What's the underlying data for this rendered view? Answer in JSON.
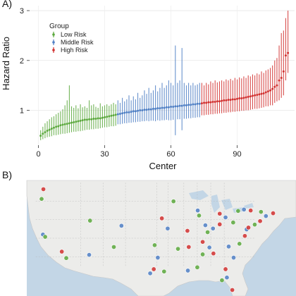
{
  "panels": {
    "a_tag": "A)",
    "b_tag": "B)"
  },
  "chart_data": {
    "type": "scatter",
    "subtype": "forest-plot",
    "title": "",
    "xlabel": "Center",
    "ylabel": "Hazard Ratio",
    "xlim": [
      -4,
      116
    ],
    "ylim": [
      0.3,
      3.1
    ],
    "xticks": [
      0,
      30,
      60,
      90
    ],
    "yticks": [
      1,
      2,
      3
    ],
    "grid": true,
    "legend": {
      "title": "Group",
      "placement": "top-left",
      "entries": [
        {
          "name": "Low Risk",
          "color": "#5aa83c"
        },
        {
          "name": "Middle Risk",
          "color": "#4f7fc4"
        },
        {
          "name": "High Risk",
          "color": "#d1302f"
        }
      ]
    },
    "series": [
      {
        "name": "Low Risk",
        "color": "#5aa83c",
        "points": [
          [
            1,
            0.49,
            0.4,
            0.6
          ],
          [
            2,
            0.53,
            0.42,
            0.67
          ],
          [
            3,
            0.56,
            0.44,
            0.74
          ],
          [
            4,
            0.59,
            0.46,
            0.78
          ],
          [
            5,
            0.61,
            0.47,
            0.82
          ],
          [
            6,
            0.63,
            0.48,
            0.86
          ],
          [
            7,
            0.65,
            0.5,
            0.88
          ],
          [
            8,
            0.67,
            0.5,
            0.92
          ],
          [
            9,
            0.68,
            0.51,
            0.95
          ],
          [
            10,
            0.7,
            0.52,
            0.98
          ],
          [
            11,
            0.71,
            0.53,
            1.02
          ],
          [
            12,
            0.72,
            0.53,
            1.1
          ],
          [
            13,
            0.73,
            0.54,
            1.2
          ],
          [
            14,
            0.74,
            0.55,
            1.5
          ],
          [
            15,
            0.75,
            0.56,
            1.08
          ],
          [
            16,
            0.76,
            0.57,
            1.05
          ],
          [
            17,
            0.77,
            0.57,
            1.1
          ],
          [
            18,
            0.78,
            0.58,
            1.04
          ],
          [
            19,
            0.79,
            0.58,
            1.12
          ],
          [
            20,
            0.8,
            0.59,
            1.06
          ],
          [
            21,
            0.81,
            0.6,
            1.08
          ],
          [
            22,
            0.81,
            0.61,
            1.05
          ],
          [
            23,
            0.82,
            0.61,
            1.2
          ],
          [
            24,
            0.82,
            0.62,
            1.1
          ],
          [
            25,
            0.83,
            0.62,
            1.12
          ],
          [
            26,
            0.83,
            0.63,
            1.07
          ],
          [
            27,
            0.84,
            0.63,
            1.05
          ],
          [
            28,
            0.84,
            0.64,
            1.14
          ],
          [
            29,
            0.85,
            0.65,
            1.08
          ],
          [
            30,
            0.86,
            0.66,
            1.1
          ],
          [
            31,
            0.87,
            0.66,
            1.12
          ],
          [
            32,
            0.88,
            0.67,
            1.09
          ],
          [
            33,
            0.89,
            0.68,
            1.12
          ],
          [
            34,
            0.9,
            0.68,
            1.15
          ],
          [
            35,
            0.91,
            0.69,
            1.12
          ]
        ]
      },
      {
        "name": "Middle Risk",
        "color": "#4f7fc4",
        "points": [
          [
            36,
            0.92,
            0.72,
            1.2
          ],
          [
            37,
            0.93,
            0.72,
            1.15
          ],
          [
            38,
            0.94,
            0.73,
            1.25
          ],
          [
            39,
            0.95,
            0.74,
            1.18
          ],
          [
            40,
            0.96,
            0.74,
            1.22
          ],
          [
            41,
            0.96,
            0.75,
            1.3
          ],
          [
            42,
            0.97,
            0.75,
            1.2
          ],
          [
            43,
            0.98,
            0.76,
            1.28
          ],
          [
            44,
            0.98,
            0.76,
            1.22
          ],
          [
            45,
            0.99,
            0.77,
            1.35
          ],
          [
            46,
            1.0,
            0.77,
            1.25
          ],
          [
            47,
            1.0,
            0.78,
            1.3
          ],
          [
            48,
            1.01,
            0.78,
            1.4
          ],
          [
            49,
            1.01,
            0.79,
            1.33
          ],
          [
            50,
            1.02,
            0.78,
            1.45
          ],
          [
            51,
            1.02,
            0.79,
            1.35
          ],
          [
            52,
            1.03,
            0.79,
            1.4
          ],
          [
            53,
            1.03,
            0.78,
            1.5
          ],
          [
            54,
            1.04,
            0.8,
            1.38
          ],
          [
            55,
            1.04,
            0.79,
            1.45
          ],
          [
            56,
            1.05,
            0.8,
            1.55
          ],
          [
            57,
            1.05,
            0.8,
            1.45
          ],
          [
            58,
            1.06,
            0.81,
            1.5
          ],
          [
            59,
            1.06,
            0.8,
            1.6
          ],
          [
            60,
            1.07,
            0.8,
            1.55
          ],
          [
            61,
            1.07,
            0.81,
            1.5
          ],
          [
            62,
            1.08,
            0.5,
            2.3
          ],
          [
            63,
            1.08,
            0.82,
            1.55
          ],
          [
            64,
            1.09,
            0.82,
            1.6
          ],
          [
            65,
            1.09,
            0.6,
            2.25
          ],
          [
            66,
            1.1,
            0.83,
            1.55
          ],
          [
            67,
            1.1,
            0.83,
            1.5
          ],
          [
            68,
            1.11,
            0.84,
            1.55
          ],
          [
            69,
            1.11,
            0.84,
            1.5
          ],
          [
            70,
            1.12,
            0.85,
            1.55
          ],
          [
            71,
            1.12,
            0.85,
            1.5
          ],
          [
            72,
            1.13,
            0.86,
            1.52
          ],
          [
            73,
            1.13,
            0.86,
            1.55
          ]
        ]
      },
      {
        "name": "High Risk",
        "color": "#d1302f",
        "points": [
          [
            74,
            1.14,
            0.9,
            1.55
          ],
          [
            75,
            1.15,
            0.9,
            1.5
          ],
          [
            76,
            1.15,
            0.91,
            1.55
          ],
          [
            77,
            1.16,
            0.91,
            1.52
          ],
          [
            78,
            1.16,
            0.92,
            1.58
          ],
          [
            79,
            1.17,
            0.92,
            1.55
          ],
          [
            80,
            1.17,
            0.93,
            1.6
          ],
          [
            81,
            1.18,
            0.93,
            1.56
          ],
          [
            82,
            1.18,
            0.94,
            1.58
          ],
          [
            83,
            1.19,
            0.94,
            1.6
          ],
          [
            84,
            1.2,
            0.95,
            1.58
          ],
          [
            85,
            1.2,
            0.95,
            1.62
          ],
          [
            86,
            1.21,
            0.96,
            1.6
          ],
          [
            87,
            1.21,
            0.96,
            1.63
          ],
          [
            88,
            1.22,
            0.97,
            1.6
          ],
          [
            89,
            1.22,
            0.97,
            1.65
          ],
          [
            90,
            1.23,
            0.98,
            1.62
          ],
          [
            91,
            1.24,
            0.98,
            1.66
          ],
          [
            92,
            1.24,
            0.99,
            1.64
          ],
          [
            93,
            1.25,
            0.99,
            1.68
          ],
          [
            94,
            1.26,
            1.0,
            1.65
          ],
          [
            95,
            1.27,
            1.0,
            1.7
          ],
          [
            96,
            1.28,
            1.01,
            1.68
          ],
          [
            97,
            1.29,
            1.02,
            1.72
          ],
          [
            98,
            1.3,
            1.03,
            1.7
          ],
          [
            99,
            1.31,
            1.03,
            1.74
          ],
          [
            100,
            1.32,
            1.04,
            1.72
          ],
          [
            101,
            1.33,
            1.05,
            1.78
          ],
          [
            102,
            1.34,
            1.06,
            1.75
          ],
          [
            103,
            1.36,
            1.08,
            1.8
          ],
          [
            104,
            1.38,
            1.08,
            1.82
          ],
          [
            105,
            1.4,
            1.1,
            1.85
          ],
          [
            106,
            1.43,
            1.1,
            1.9
          ],
          [
            107,
            1.47,
            1.15,
            2.0
          ],
          [
            108,
            1.5,
            1.18,
            2.05
          ],
          [
            109,
            1.6,
            1.2,
            2.3
          ],
          [
            110,
            1.65,
            1.25,
            2.55
          ],
          [
            111,
            1.78,
            1.3,
            2.6
          ],
          [
            112,
            2.1,
            1.6,
            2.85
          ],
          [
            113,
            2.15,
            1.75,
            3.0
          ]
        ]
      }
    ]
  },
  "map_data": {
    "colors": {
      "water": "#c3d6e6",
      "land": "#ececea",
      "border": "#b5b5b5",
      "road": "#d9d9d2"
    },
    "markers": [
      {
        "lon": -122.4,
        "lat": 37.8,
        "group": "Middle Risk"
      },
      {
        "lon": -121.9,
        "lat": 37.3,
        "group": "Low Risk"
      },
      {
        "lon": -118.2,
        "lat": 34.1,
        "group": "High Risk"
      },
      {
        "lon": -117.2,
        "lat": 32.7,
        "group": "Low Risk"
      },
      {
        "lon": -122.3,
        "lat": 47.6,
        "group": "High Risk"
      },
      {
        "lon": -122.7,
        "lat": 45.5,
        "group": "Low Risk"
      },
      {
        "lon": -112.1,
        "lat": 33.4,
        "group": "Middle Risk"
      },
      {
        "lon": -111.9,
        "lat": 40.8,
        "group": "Low Risk"
      },
      {
        "lon": -104.9,
        "lat": 39.7,
        "group": "Middle Risk"
      },
      {
        "lon": -106.6,
        "lat": 35.1,
        "group": "Low Risk"
      },
      {
        "lon": -97.7,
        "lat": 30.3,
        "group": "High Risk"
      },
      {
        "lon": -96.8,
        "lat": 32.8,
        "group": "Middle Risk"
      },
      {
        "lon": -95.4,
        "lat": 29.8,
        "group": "Low Risk"
      },
      {
        "lon": -98.5,
        "lat": 29.4,
        "group": "Middle Risk"
      },
      {
        "lon": -97.5,
        "lat": 35.5,
        "group": "Low Risk"
      },
      {
        "lon": -95.9,
        "lat": 41.3,
        "group": "High Risk"
      },
      {
        "lon": -94.6,
        "lat": 39.1,
        "group": "Middle Risk"
      },
      {
        "lon": -93.3,
        "lat": 44.98,
        "group": "Low Risk"
      },
      {
        "lon": -90.2,
        "lat": 38.6,
        "group": "High Risk"
      },
      {
        "lon": -90.1,
        "lat": 30.0,
        "group": "Middle Risk"
      },
      {
        "lon": -92.3,
        "lat": 34.7,
        "group": "Low Risk"
      },
      {
        "lon": -87.6,
        "lat": 41.9,
        "group": "Low Risk"
      },
      {
        "lon": -87.9,
        "lat": 43.0,
        "group": "Middle Risk"
      },
      {
        "lon": -86.2,
        "lat": 39.8,
        "group": "Middle Risk"
      },
      {
        "lon": -86.8,
        "lat": 36.2,
        "group": "High Risk"
      },
      {
        "lon": -86.8,
        "lat": 33.5,
        "group": "Low Risk"
      },
      {
        "lon": -85.7,
        "lat": 38.3,
        "group": "Low Risk"
      },
      {
        "lon": -84.5,
        "lat": 39.1,
        "group": "Middle Risk"
      },
      {
        "lon": -83.0,
        "lat": 40.0,
        "group": "High Risk"
      },
      {
        "lon": -83.0,
        "lat": 42.3,
        "group": "High Risk"
      },
      {
        "lon": -81.7,
        "lat": 41.5,
        "group": "Middle Risk"
      },
      {
        "lon": -80.0,
        "lat": 40.4,
        "group": "Low Risk"
      },
      {
        "lon": -84.4,
        "lat": 33.7,
        "group": "High Risk"
      },
      {
        "lon": -81.0,
        "lat": 35.2,
        "group": "Middle Risk"
      },
      {
        "lon": -78.6,
        "lat": 35.8,
        "group": "Low Risk"
      },
      {
        "lon": -77.4,
        "lat": 37.5,
        "group": "High Risk"
      },
      {
        "lon": -77.0,
        "lat": 38.9,
        "group": "Middle Risk"
      },
      {
        "lon": -76.6,
        "lat": 39.3,
        "group": "High Risk"
      },
      {
        "lon": -75.2,
        "lat": 39.95,
        "group": "Low Risk"
      },
      {
        "lon": -74.0,
        "lat": 40.7,
        "group": "High Risk"
      },
      {
        "lon": -73.8,
        "lat": 42.7,
        "group": "Low Risk"
      },
      {
        "lon": -71.1,
        "lat": 42.4,
        "group": "High Risk"
      },
      {
        "lon": -72.7,
        "lat": 41.8,
        "group": "Middle Risk"
      },
      {
        "lon": -79.9,
        "lat": 32.8,
        "group": "Middle Risk"
      },
      {
        "lon": -81.7,
        "lat": 30.3,
        "group": "High Risk"
      },
      {
        "lon": -82.5,
        "lat": 27.9,
        "group": "Low Risk"
      },
      {
        "lon": -81.4,
        "lat": 28.5,
        "group": "Middle Risk"
      },
      {
        "lon": -80.2,
        "lat": 25.8,
        "group": "High Risk"
      },
      {
        "lon": -88.0,
        "lat": 30.7,
        "group": "Low Risk"
      },
      {
        "lon": -85.3,
        "lat": 35.0,
        "group": "Middle Risk"
      },
      {
        "lon": -89.9,
        "lat": 35.1,
        "group": "High Risk"
      },
      {
        "lon": -77.6,
        "lat": 43.2,
        "group": "Middle Risk"
      },
      {
        "lon": -76.1,
        "lat": 43.0,
        "group": "High Risk"
      },
      {
        "lon": -78.9,
        "lat": 42.9,
        "group": "Low Risk"
      }
    ]
  }
}
